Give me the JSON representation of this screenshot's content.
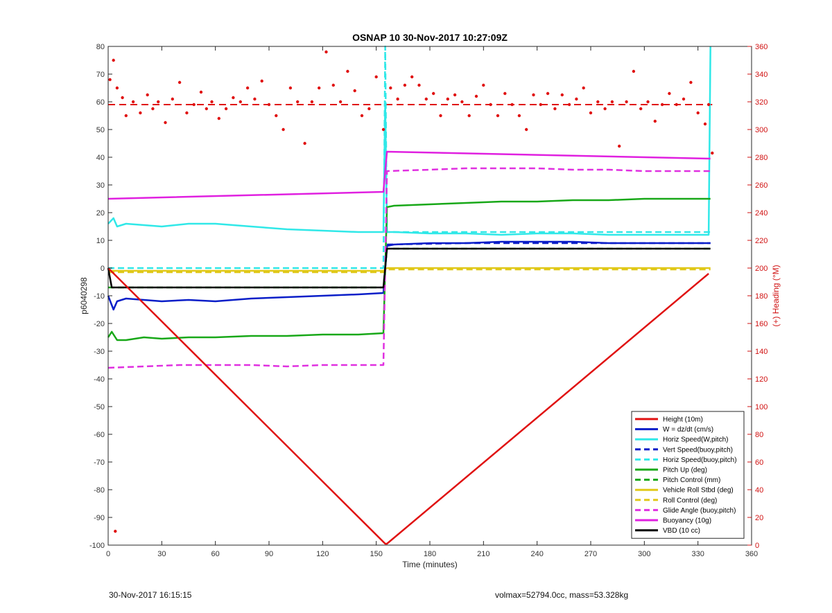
{
  "chart_data": {
    "type": "line",
    "title": "OSNAP 10 30-Nov-2017 10:27:09Z",
    "xlabel": "Time (minutes)",
    "ylabel": "p6040298",
    "ylabel_right": "(+) Heading (°M)",
    "xlim": [
      0,
      360
    ],
    "ylim": [
      -100,
      80
    ],
    "ylim_right": [
      0,
      360
    ],
    "x_ticks": [
      0,
      30,
      60,
      90,
      120,
      150,
      180,
      210,
      240,
      270,
      300,
      330,
      360
    ],
    "y_ticks": [
      -100,
      -90,
      -80,
      -70,
      -60,
      -50,
      -40,
      -30,
      -20,
      -10,
      0,
      10,
      20,
      30,
      40,
      50,
      60,
      70,
      80
    ],
    "y_ticks_right": [
      0,
      20,
      40,
      60,
      80,
      100,
      120,
      140,
      160,
      180,
      200,
      220,
      240,
      260,
      280,
      300,
      320,
      340,
      360
    ],
    "grid": false,
    "legend_position": "bottom-right",
    "series": [
      {
        "name": "Height (10m)",
        "color": "#e01010",
        "dash": "solid",
        "x": [
          0,
          155,
          156,
          336
        ],
        "y": [
          0,
          -99.5,
          -99.5,
          -2
        ]
      },
      {
        "name": "W = dz/dt (cm/s)",
        "color": "#0a1ec8",
        "dash": "solid",
        "x": [
          0,
          3,
          5,
          10,
          20,
          30,
          45,
          60,
          80,
          100,
          120,
          140,
          154,
          156,
          160,
          180,
          200,
          220,
          240,
          260,
          280,
          300,
          320,
          337
        ],
        "y": [
          -10,
          -15,
          -12,
          -11,
          -11.5,
          -12,
          -11.5,
          -12,
          -11,
          -10.5,
          -10,
          -9.5,
          -9,
          8,
          8.5,
          9,
          9,
          9.5,
          9.5,
          9.5,
          9,
          9,
          9,
          9
        ]
      },
      {
        "name": "Horiz Speed(W,pitch)",
        "color": "#30e8e8",
        "dash": "solid",
        "x": [
          0,
          3,
          5,
          10,
          20,
          30,
          45,
          60,
          80,
          100,
          120,
          140,
          154,
          155,
          156,
          160,
          180,
          200,
          220,
          240,
          260,
          280,
          300,
          320,
          336,
          337
        ],
        "y": [
          16,
          18,
          15,
          16,
          15.5,
          15,
          16,
          16,
          15,
          14,
          13.5,
          13,
          13,
          60,
          13,
          13,
          12.5,
          12.5,
          12,
          12.5,
          12.5,
          12,
          12,
          12,
          12,
          80
        ]
      },
      {
        "name": "Vert Speed(buoy,pitch)",
        "color": "#0a1ec8",
        "dash": "dashed",
        "x": [
          156,
          200,
          250,
          300,
          337
        ],
        "y": [
          8.5,
          9,
          9,
          9,
          9
        ]
      },
      {
        "name": "Horiz Speed(buoy,pitch)",
        "color": "#30e8e8",
        "dash": "dashed",
        "x": [
          0,
          154,
          155,
          156,
          337
        ],
        "y": [
          0,
          0,
          80,
          13,
          13
        ]
      },
      {
        "name": "Pitch Up (deg)",
        "color": "#18a818",
        "dash": "solid",
        "x": [
          0,
          2,
          5,
          10,
          20,
          30,
          45,
          60,
          80,
          100,
          120,
          140,
          154,
          156,
          160,
          180,
          200,
          220,
          240,
          260,
          280,
          300,
          320,
          337
        ],
        "y": [
          -25,
          -23,
          -26,
          -26,
          -25,
          -25.5,
          -25,
          -25,
          -24.5,
          -24.5,
          -24,
          -24,
          -23.5,
          22,
          22.5,
          23,
          23.5,
          24,
          24,
          24.5,
          24.5,
          25,
          25,
          25
        ]
      },
      {
        "name": "Pitch Control (mm)",
        "color": "#18a818",
        "dash": "dashed",
        "x": [
          0,
          154,
          156,
          337
        ],
        "y": [
          -7,
          -7,
          7,
          7
        ]
      },
      {
        "name": "Vehicle Roll Stbd (deg)",
        "color": "#e0c818",
        "dash": "solid",
        "x": [
          0,
          154,
          156,
          337
        ],
        "y": [
          -1,
          -1,
          0,
          0
        ]
      },
      {
        "name": "Roll Control (deg)",
        "color": "#e0c818",
        "dash": "dashed",
        "x": [
          0,
          154,
          156,
          337
        ],
        "y": [
          -1.5,
          -1.5,
          -0.5,
          -0.5
        ]
      },
      {
        "name": "Glide Angle (buoy,pitch)",
        "color": "#e030e0",
        "dash": "dashed",
        "x": [
          0,
          20,
          40,
          60,
          80,
          100,
          120,
          140,
          154,
          156,
          180,
          200,
          220,
          240,
          260,
          280,
          300,
          320,
          337
        ],
        "y": [
          -36,
          -35.5,
          -35,
          -35,
          -35,
          -35.5,
          -35,
          -35,
          -35,
          35,
          35.5,
          36,
          36,
          36,
          35.5,
          35.5,
          35,
          35,
          35
        ]
      },
      {
        "name": "Buoyancy (10g)",
        "color": "#e020e0",
        "dash": "solid",
        "x": [
          0,
          154,
          156,
          337
        ],
        "y": [
          25,
          27.5,
          42,
          39.5
        ]
      },
      {
        "name": "VBD (10 cc)",
        "color": "#000000",
        "dash": "solid",
        "x": [
          0,
          2,
          154,
          156,
          337
        ],
        "y": [
          0,
          -7,
          -7,
          7,
          7
        ]
      }
    ],
    "heading_series": {
      "name": "(+) Heading (°M)",
      "color": "#e01010",
      "axis": "right",
      "reference_value": 318,
      "points": [
        {
          "x": 1,
          "y": 336
        },
        {
          "x": 3,
          "y": 350
        },
        {
          "x": 5,
          "y": 330
        },
        {
          "x": 8,
          "y": 323
        },
        {
          "x": 10,
          "y": 310
        },
        {
          "x": 14,
          "y": 320
        },
        {
          "x": 18,
          "y": 312
        },
        {
          "x": 22,
          "y": 325
        },
        {
          "x": 25,
          "y": 315
        },
        {
          "x": 28,
          "y": 320
        },
        {
          "x": 32,
          "y": 305
        },
        {
          "x": 36,
          "y": 322
        },
        {
          "x": 40,
          "y": 334
        },
        {
          "x": 44,
          "y": 312
        },
        {
          "x": 48,
          "y": 318
        },
        {
          "x": 52,
          "y": 327
        },
        {
          "x": 55,
          "y": 315
        },
        {
          "x": 58,
          "y": 320
        },
        {
          "x": 62,
          "y": 308
        },
        {
          "x": 66,
          "y": 315
        },
        {
          "x": 70,
          "y": 323
        },
        {
          "x": 74,
          "y": 320
        },
        {
          "x": 78,
          "y": 330
        },
        {
          "x": 82,
          "y": 322
        },
        {
          "x": 86,
          "y": 335
        },
        {
          "x": 90,
          "y": 318
        },
        {
          "x": 94,
          "y": 310
        },
        {
          "x": 98,
          "y": 300
        },
        {
          "x": 102,
          "y": 330
        },
        {
          "x": 106,
          "y": 320
        },
        {
          "x": 110,
          "y": 290
        },
        {
          "x": 114,
          "y": 320
        },
        {
          "x": 118,
          "y": 330
        },
        {
          "x": 122,
          "y": 356
        },
        {
          "x": 126,
          "y": 332
        },
        {
          "x": 130,
          "y": 320
        },
        {
          "x": 134,
          "y": 342
        },
        {
          "x": 138,
          "y": 328
        },
        {
          "x": 142,
          "y": 310
        },
        {
          "x": 146,
          "y": 315
        },
        {
          "x": 150,
          "y": 338
        },
        {
          "x": 154,
          "y": 300
        },
        {
          "x": 158,
          "y": 330
        },
        {
          "x": 162,
          "y": 322
        },
        {
          "x": 166,
          "y": 332
        },
        {
          "x": 170,
          "y": 338
        },
        {
          "x": 174,
          "y": 332
        },
        {
          "x": 178,
          "y": 322
        },
        {
          "x": 182,
          "y": 326
        },
        {
          "x": 186,
          "y": 310
        },
        {
          "x": 190,
          "y": 322
        },
        {
          "x": 194,
          "y": 325
        },
        {
          "x": 198,
          "y": 320
        },
        {
          "x": 202,
          "y": 310
        },
        {
          "x": 206,
          "y": 324
        },
        {
          "x": 210,
          "y": 332
        },
        {
          "x": 214,
          "y": 318
        },
        {
          "x": 218,
          "y": 310
        },
        {
          "x": 222,
          "y": 326
        },
        {
          "x": 226,
          "y": 318
        },
        {
          "x": 230,
          "y": 310
        },
        {
          "x": 234,
          "y": 300
        },
        {
          "x": 238,
          "y": 325
        },
        {
          "x": 242,
          "y": 318
        },
        {
          "x": 246,
          "y": 326
        },
        {
          "x": 250,
          "y": 315
        },
        {
          "x": 254,
          "y": 325
        },
        {
          "x": 258,
          "y": 318
        },
        {
          "x": 262,
          "y": 322
        },
        {
          "x": 266,
          "y": 330
        },
        {
          "x": 270,
          "y": 312
        },
        {
          "x": 274,
          "y": 320
        },
        {
          "x": 278,
          "y": 315
        },
        {
          "x": 282,
          "y": 320
        },
        {
          "x": 286,
          "y": 288
        },
        {
          "x": 290,
          "y": 320
        },
        {
          "x": 294,
          "y": 342
        },
        {
          "x": 298,
          "y": 315
        },
        {
          "x": 302,
          "y": 320
        },
        {
          "x": 306,
          "y": 306
        },
        {
          "x": 310,
          "y": 318
        },
        {
          "x": 314,
          "y": 326
        },
        {
          "x": 318,
          "y": 318
        },
        {
          "x": 322,
          "y": 322
        },
        {
          "x": 326,
          "y": 334
        },
        {
          "x": 330,
          "y": 312
        },
        {
          "x": 334,
          "y": 304
        },
        {
          "x": 336,
          "y": 318
        },
        {
          "x": 338,
          "y": 283
        },
        {
          "x": 4,
          "y": 10
        }
      ]
    }
  },
  "footer": {
    "timestamp": "30-Nov-2017 16:15:15",
    "summary": "volmax=52794.0cc, mass=53.328kg"
  }
}
